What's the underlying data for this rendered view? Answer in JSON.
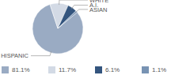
{
  "chart_data": {
    "type": "pie",
    "categories": [
      "HISPANIC",
      "WHITE",
      "A.I.",
      "ASIAN"
    ],
    "values": [
      81.1,
      11.7,
      6.1,
      1.1
    ],
    "value_labels": [
      "81.1%",
      "11.7%",
      "6.1%",
      "1.1%"
    ],
    "colors": [
      "#9aabc3",
      "#d3dae5",
      "#34557e",
      "#7893b3"
    ],
    "legend": "bottom"
  }
}
